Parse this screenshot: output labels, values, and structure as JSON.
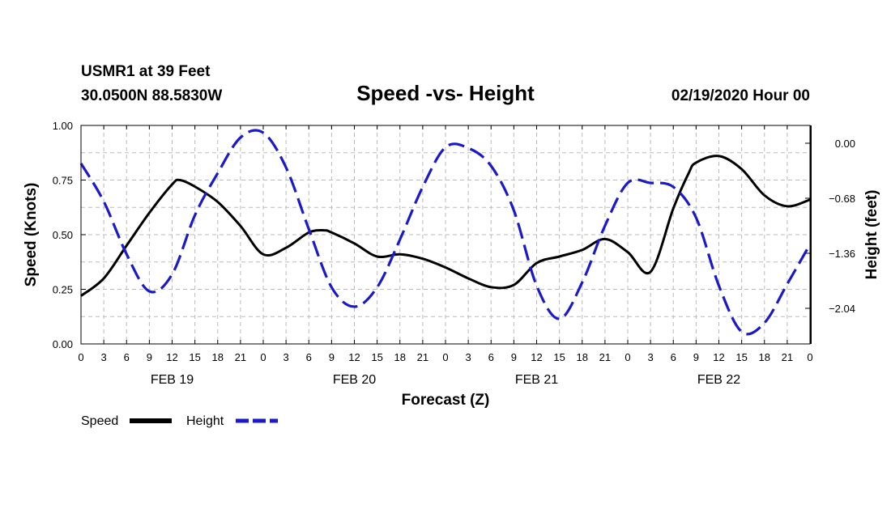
{
  "header": {
    "station": "USMR1 at 39 Feet",
    "coords": "30.0500N 88.5830W",
    "title": "Speed -vs- Height",
    "date": "02/19/2020 Hour 00"
  },
  "colors": {
    "speed": "#000000",
    "height": "#1a1acc",
    "grid": "#bbbbbb"
  },
  "chart_data": {
    "type": "line",
    "title": "Speed -vs- Height",
    "xlabel": "Forecast (Z)",
    "ylabel": "Speed (Knots)",
    "ylabel_right": "Height (feet)",
    "xlim": [
      0,
      96
    ],
    "ylim": [
      0,
      1.0
    ],
    "ylim_right": [
      -2.48,
      0.22
    ],
    "grid": true,
    "x_tick_values": [
      0,
      3,
      6,
      9,
      12,
      15,
      18,
      21,
      24,
      27,
      30,
      33,
      36,
      39,
      42,
      45,
      48,
      51,
      54,
      57,
      60,
      63,
      66,
      69,
      72,
      75,
      78,
      81,
      84,
      87,
      90,
      93,
      96
    ],
    "x_tick_labels": [
      "0",
      "3",
      "6",
      "9",
      "12",
      "15",
      "18",
      "21",
      "0",
      "3",
      "6",
      "9",
      "12",
      "15",
      "18",
      "21",
      "0",
      "3",
      "6",
      "9",
      "12",
      "15",
      "18",
      "21",
      "0",
      "3",
      "6",
      "9",
      "12",
      "15",
      "18",
      "21",
      "0"
    ],
    "date_labels": [
      {
        "x": 12,
        "label": "FEB 19"
      },
      {
        "x": 36,
        "label": "FEB 20"
      },
      {
        "x": 60,
        "label": "FEB 21"
      },
      {
        "x": 84,
        "label": "FEB 22"
      }
    ],
    "y_left_ticks": [
      {
        "v": 0.0,
        "label": "0.00"
      },
      {
        "v": 0.25,
        "label": "0.25"
      },
      {
        "v": 0.5,
        "label": "0.50"
      },
      {
        "v": 0.75,
        "label": "0.75"
      },
      {
        "v": 1.0,
        "label": "1.00"
      }
    ],
    "y_right_ticks": [
      {
        "v": 0.0,
        "label": "0.00"
      },
      {
        "v": -0.68,
        "label": "−0.68"
      },
      {
        "v": -1.36,
        "label": "−1.36"
      },
      {
        "v": -2.04,
        "label": "−2.04"
      }
    ],
    "series": [
      {
        "name": "Speed",
        "axis": "left",
        "style": "solid",
        "x": [
          0,
          3,
          6,
          9,
          12,
          13,
          15,
          18,
          21,
          24,
          27,
          30,
          32,
          33,
          36,
          39,
          42,
          45,
          48,
          51,
          54,
          57,
          60,
          63,
          66,
          69,
          72,
          75,
          78,
          80,
          81,
          84,
          87,
          90,
          93,
          96
        ],
        "y": [
          0.22,
          0.3,
          0.45,
          0.6,
          0.73,
          0.75,
          0.72,
          0.65,
          0.54,
          0.41,
          0.44,
          0.51,
          0.52,
          0.51,
          0.46,
          0.4,
          0.41,
          0.39,
          0.35,
          0.3,
          0.26,
          0.27,
          0.37,
          0.4,
          0.43,
          0.48,
          0.42,
          0.33,
          0.62,
          0.78,
          0.83,
          0.86,
          0.8,
          0.68,
          0.63,
          0.66
        ]
      },
      {
        "name": "Height",
        "axis": "right",
        "style": "dashed",
        "x": [
          0,
          3,
          6,
          9,
          12,
          15,
          18,
          21,
          24,
          27,
          30,
          33,
          36,
          39,
          42,
          45,
          48,
          51,
          54,
          57,
          60,
          63,
          66,
          69,
          72,
          75,
          78,
          81,
          84,
          87,
          90,
          93,
          96
        ],
        "y": [
          -0.25,
          -0.72,
          -1.37,
          -1.83,
          -1.62,
          -0.89,
          -0.37,
          0.07,
          0.13,
          -0.3,
          -1.06,
          -1.78,
          -2.02,
          -1.78,
          -1.19,
          -0.54,
          -0.05,
          -0.06,
          -0.28,
          -0.83,
          -1.76,
          -2.17,
          -1.72,
          -1.02,
          -0.49,
          -0.49,
          -0.54,
          -0.92,
          -1.76,
          -2.33,
          -2.22,
          -1.74,
          -1.25
        ]
      }
    ],
    "legend": {
      "position": "bottom-left",
      "entries": [
        {
          "label": "Speed",
          "style": "solid"
        },
        {
          "label": "Height",
          "style": "dashed"
        }
      ]
    }
  }
}
